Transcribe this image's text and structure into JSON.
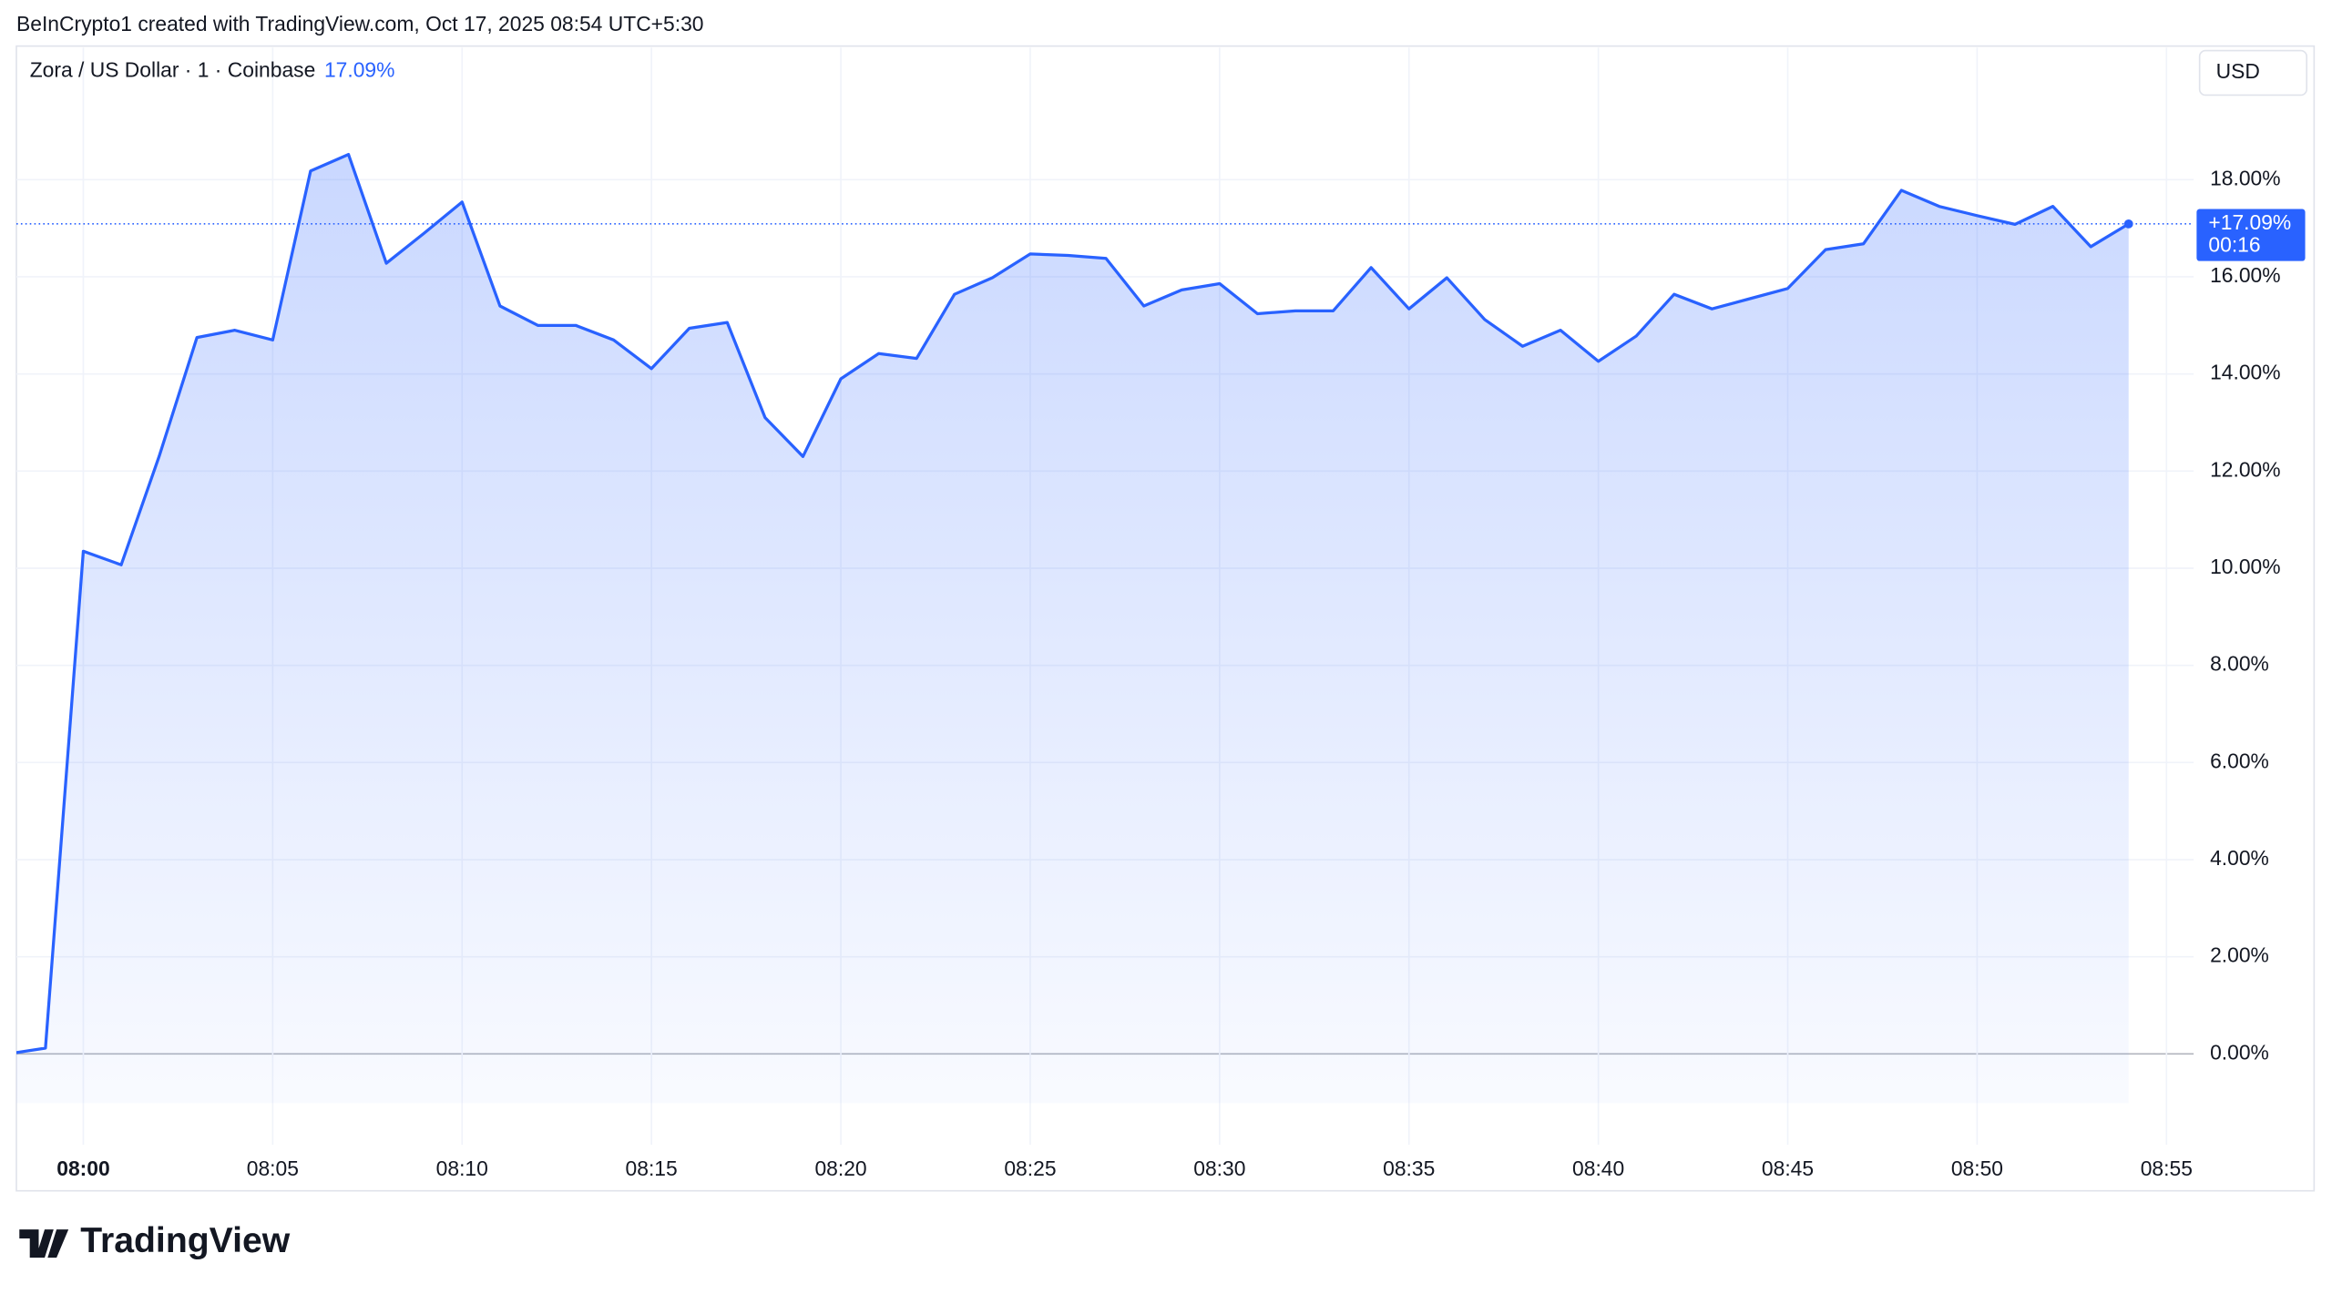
{
  "header": "BeInCrypto1 created with TradingView.com, Oct 17, 2025 08:54 UTC+5:30",
  "footer": "TradingView",
  "chart_data": {
    "type": "area",
    "legend": "Zora / US Dollar · 1 · Coinbase",
    "legend_change": {
      "value": 17.09,
      "label": "17.09%"
    },
    "currency": "USD",
    "price_tag": {
      "value": 17.09,
      "label": "+17.09%",
      "countdown": "00:16"
    },
    "color": "#2962ff",
    "x": [
      "07:58",
      "07:59",
      "08:00",
      "08:01",
      "08:02",
      "08:03",
      "08:04",
      "08:05",
      "08:06",
      "08:07",
      "08:08",
      "08:09",
      "08:10",
      "08:11",
      "08:12",
      "08:13",
      "08:14",
      "08:15",
      "08:16",
      "08:17",
      "08:18",
      "08:19",
      "08:20",
      "08:21",
      "08:22",
      "08:23",
      "08:24",
      "08:25",
      "08:26",
      "08:27",
      "08:28",
      "08:29",
      "08:30",
      "08:31",
      "08:32",
      "08:33",
      "08:34",
      "08:35",
      "08:36",
      "08:37",
      "08:38",
      "08:39",
      "08:40",
      "08:41",
      "08:42",
      "08:43",
      "08:44",
      "08:45",
      "08:46",
      "08:47",
      "08:48",
      "08:49",
      "08:50",
      "08:51",
      "08:52",
      "08:53",
      "08:54"
    ],
    "values": [
      0.0,
      0.12,
      10.35,
      10.07,
      12.3,
      14.75,
      14.9,
      14.7,
      18.18,
      18.52,
      16.28,
      16.9,
      17.54,
      15.4,
      15.0,
      15.0,
      14.7,
      14.11,
      14.94,
      15.06,
      13.1,
      12.3,
      13.9,
      14.42,
      14.32,
      15.64,
      15.98,
      16.47,
      16.44,
      16.38,
      15.4,
      15.73,
      15.86,
      15.24,
      15.3,
      15.3,
      16.19,
      15.34,
      15.98,
      15.12,
      14.57,
      14.9,
      14.26,
      14.78,
      15.64,
      15.34,
      15.55,
      15.76,
      16.56,
      16.68,
      17.78,
      17.45,
      17.26,
      17.08,
      17.45,
      16.62,
      17.09
    ],
    "xlim": [
      "07:58:14",
      "08:55:43"
    ],
    "xticks": [
      "08:00",
      "08:05",
      "08:10",
      "08:15",
      "08:20",
      "08:25",
      "08:30",
      "08:35",
      "08:40",
      "08:45",
      "08:50",
      "08:55"
    ],
    "ylim": [
      -1.87,
      20.72
    ],
    "yticks": [
      {
        "value": 0,
        "label": "0.00%"
      },
      {
        "value": 2,
        "label": "2.00%"
      },
      {
        "value": 4,
        "label": "4.00%"
      },
      {
        "value": 6,
        "label": "6.00%"
      },
      {
        "value": 8,
        "label": "8.00%"
      },
      {
        "value": 10,
        "label": "10.00%"
      },
      {
        "value": 12,
        "label": "12.00%"
      },
      {
        "value": 14,
        "label": "14.00%"
      },
      {
        "value": 16,
        "label": "16.00%"
      },
      {
        "value": 18,
        "label": "18.00%"
      }
    ],
    "grid": true
  }
}
